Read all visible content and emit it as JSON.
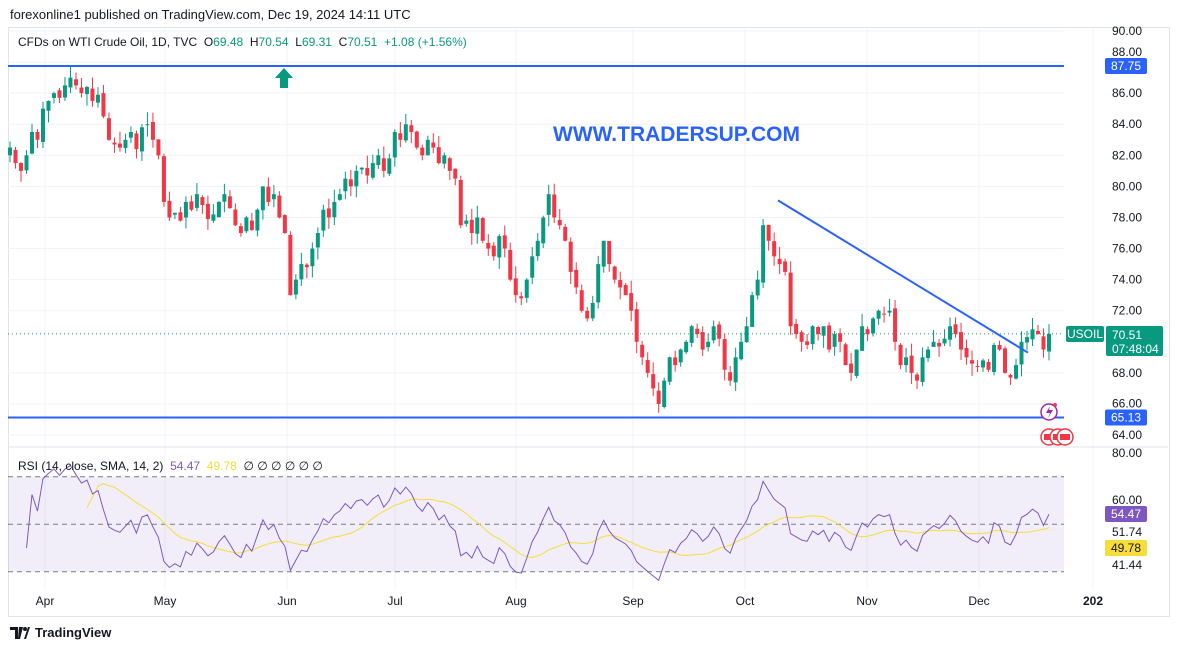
{
  "header": {
    "published": "forexonline1 published on TradingView.com, Dec 19, 2024 14:11 UTC"
  },
  "legend": {
    "symbol": "CFDs on WTI Crude Oil, 1D, TVC",
    "o_label": "O",
    "o": "69.48",
    "h_label": "H",
    "h": "70.54",
    "l_label": "L",
    "l": "69.31",
    "c_label": "C",
    "c": "70.51",
    "change": "+1.08 (+1.56%)"
  },
  "watermark": "WWW.TRADERSUP.COM",
  "price_tag": {
    "symbol": "USOIL",
    "price": "70.51",
    "countdown": "07:48:04"
  },
  "level_labels": {
    "top": "87.75",
    "bottom": "65.13"
  },
  "rsi_legend": {
    "title": "RSI (14, close, SMA, 14, 2)",
    "rsi": "54.47",
    "sma": "49.78",
    "empties": "∅ ∅ ∅ ∅ ∅ ∅"
  },
  "rsi_labels": {
    "rsi": "54.47",
    "sma": "49.78"
  },
  "footer": {
    "brand": "TradingView"
  },
  "colors": {
    "up": "#089981",
    "down": "#f23645",
    "line": "#2962ff",
    "rsi": "#7e57c2",
    "sma": "#f7dc3a"
  },
  "chart_data": {
    "type": "candlestick",
    "title": "CFDs on WTI Crude Oil, 1D, TVC",
    "ylim": [
      63,
      90
    ],
    "y_ticks": [
      90,
      88,
      86,
      84,
      82,
      80,
      78,
      76,
      74,
      72,
      68,
      66,
      64
    ],
    "x_ticks": [
      "Apr",
      "May",
      "Jun",
      "Jul",
      "Aug",
      "Sep",
      "Oct",
      "Nov",
      "Dec",
      "202"
    ],
    "horizontal_levels": [
      87.75,
      65.13
    ],
    "trendline": {
      "from_price": 79.1,
      "to_price": 69.3
    },
    "last_close": 70.51,
    "closes": [
      82.5,
      81.5,
      81,
      82,
      83.5,
      83,
      85,
      85.5,
      86,
      85.7,
      86.5,
      87,
      86.5,
      86,
      86.4,
      85.5,
      85.9,
      84.5,
      83,
      82.7,
      82.5,
      83,
      83.5,
      82.4,
      83.8,
      84,
      83,
      82,
      79,
      78,
      78.3,
      77.8,
      79,
      78.5,
      79.5,
      78.8,
      77.9,
      78.2,
      79,
      79.5,
      78.6,
      77.5,
      77,
      78,
      77.2,
      78.5,
      80,
      79,
      79.5,
      78,
      77,
      73,
      74,
      75,
      74.8,
      76,
      77,
      78.5,
      78,
      79,
      79.5,
      80.5,
      80,
      81,
      81.2,
      80.7,
      81.5,
      82,
      81,
      81.8,
      83.5,
      83,
      84,
      83.5,
      82.5,
      82,
      83,
      82.5,
      81.5,
      82,
      81,
      80.5,
      77.5,
      77.8,
      77,
      78,
      76.5,
      76,
      75.5,
      76.8,
      76,
      74,
      73,
      72.8,
      74,
      75.5,
      76.5,
      78,
      79.5,
      78,
      77.5,
      76.5,
      74.5,
      73.5,
      72,
      71.5,
      72.5,
      75,
      76.5,
      75,
      74,
      73.5,
      73,
      72,
      70,
      69,
      68,
      67,
      66,
      67.5,
      69,
      68.5,
      69.5,
      70,
      71,
      70.5,
      69.5,
      70,
      71,
      70.2,
      68.2,
      67.5,
      69,
      70,
      71,
      73,
      74,
      77.5,
      76.5,
      75.5,
      75,
      74.5,
      71,
      70.5,
      70,
      69.8,
      71,
      70.5,
      71,
      69.5,
      70.5,
      70,
      68.5,
      68,
      69.5,
      71,
      70.5,
      71.5,
      72,
      71.8,
      72,
      70,
      68.5,
      69,
      68,
      67.5,
      69,
      69.5,
      70,
      69.7,
      70.2,
      71,
      70.5,
      69.5,
      69,
      68.6,
      68.4,
      68.8,
      68.2,
      69.8,
      69.5,
      68,
      67.7,
      68.5,
      70,
      70.3,
      70.8,
      70.5,
      69.5,
      70.51
    ],
    "rsi": {
      "title": "RSI (14, close, SMA, 14, 2)",
      "ylim": [
        30,
        80
      ],
      "y_ticks": [
        80,
        60,
        51.74,
        41.44
      ],
      "bands": [
        70,
        50,
        30
      ],
      "last_rsi": 54.47,
      "last_sma": 49.78
    }
  }
}
